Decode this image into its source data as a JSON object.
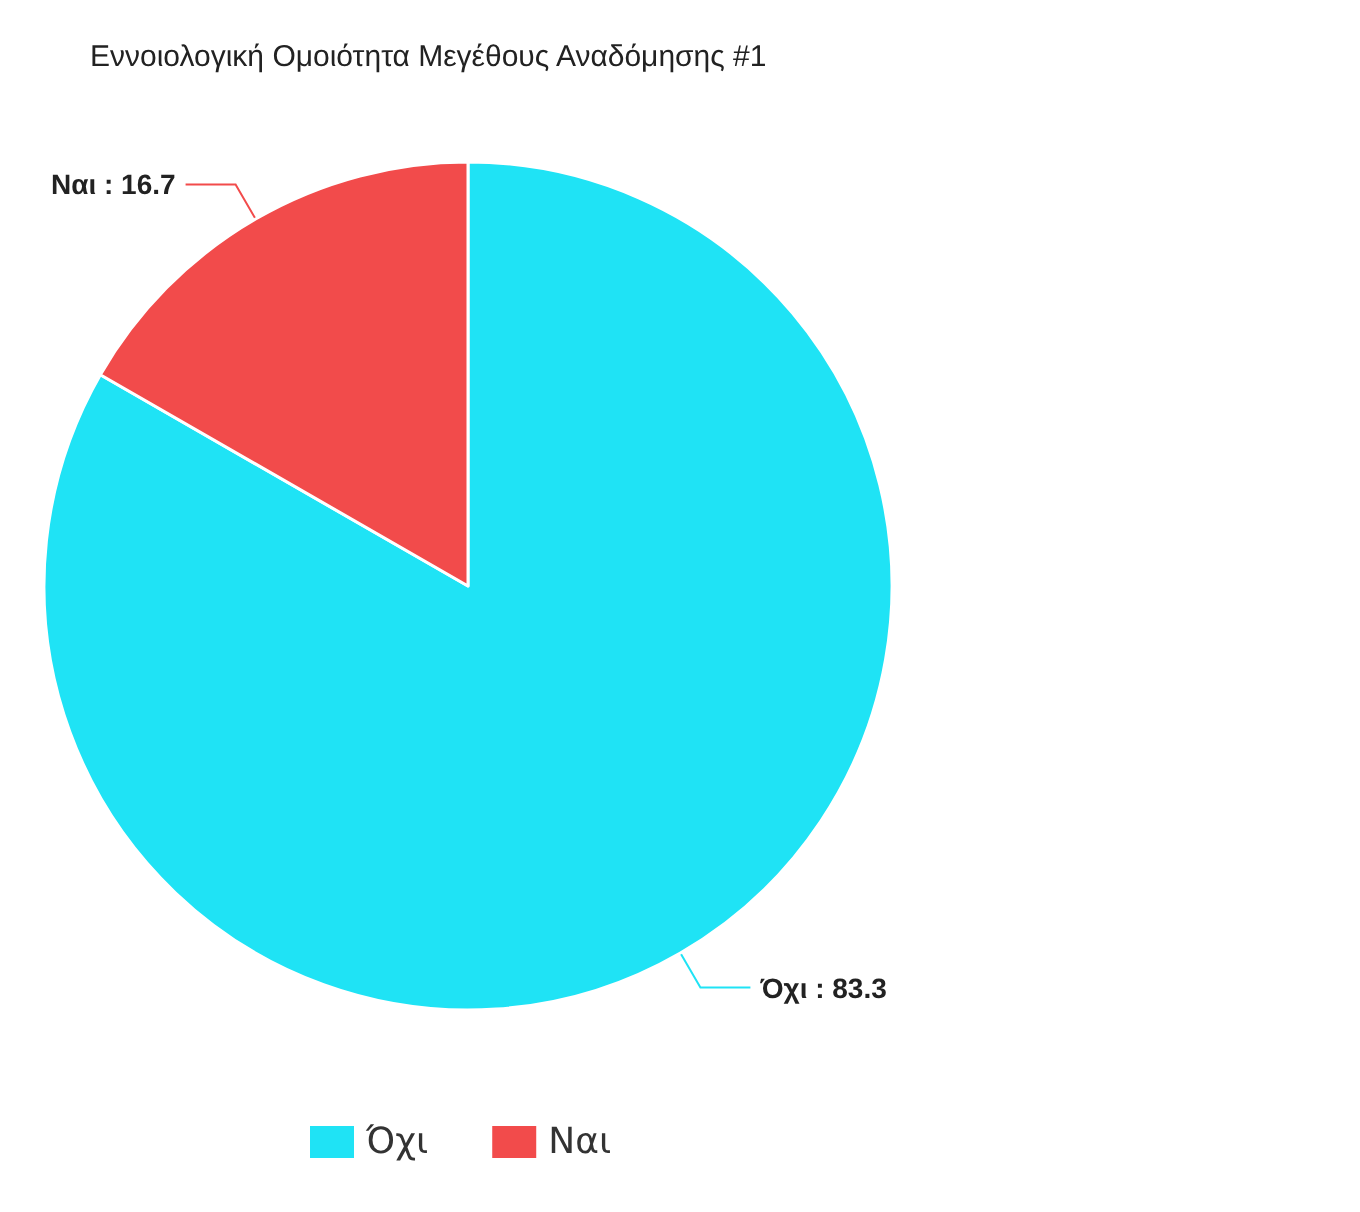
{
  "chart_data": {
    "type": "pie",
    "title": "Εννοιολογική Ομοιότητα Μεγέθους Αναδόμησης #1",
    "categories": [
      "Όχι",
      "Ναι"
    ],
    "values": [
      83.3,
      16.7
    ],
    "value_labels": [
      ": 83.3",
      ": 16.7"
    ],
    "colors": [
      "#1fe3f5",
      "#f24b4b"
    ],
    "legend": "bottom"
  }
}
